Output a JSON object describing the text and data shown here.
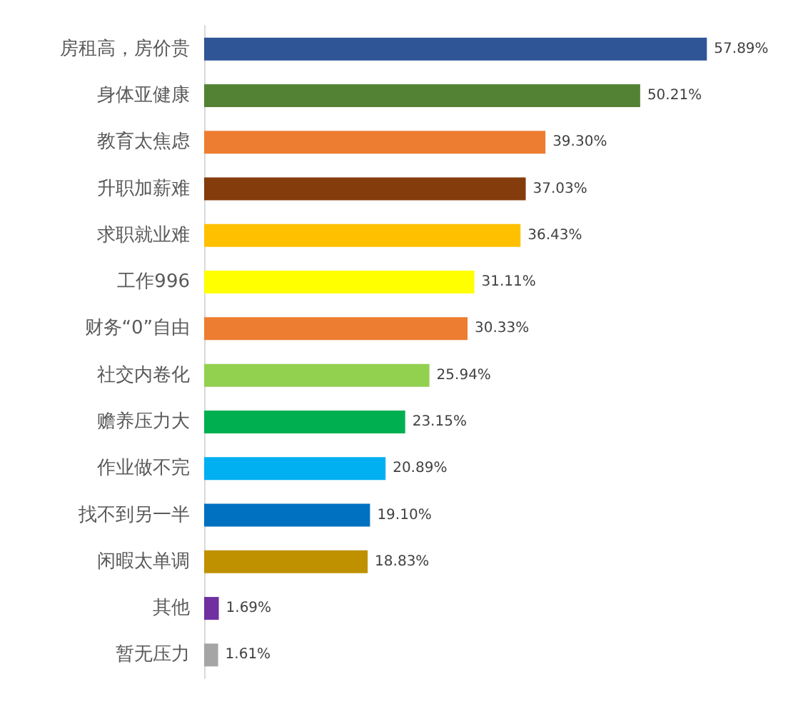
{
  "chart_data": {
    "type": "bar",
    "orientation": "horizontal",
    "categories": [
      "房租高，房价贵",
      "身体亚健康",
      "教育太焦虑",
      "升职加薪难",
      "求职就业难",
      "工作996",
      "财务“0”自由",
      "社交内卷化",
      "赡养压力大",
      "作业做不完",
      "找不到另一半",
      "闲暇太单调",
      "其他",
      "暂无压力"
    ],
    "values": [
      57.89,
      50.21,
      39.3,
      37.03,
      36.43,
      31.11,
      30.33,
      25.94,
      23.15,
      20.89,
      19.1,
      18.83,
      1.69,
      1.61
    ],
    "value_labels": [
      "57.89%",
      "50.21%",
      "39.30%",
      "37.03%",
      "36.43%",
      "31.11%",
      "30.33%",
      "25.94%",
      "23.15%",
      "20.89%",
      "19.10%",
      "18.83%",
      "1.69%",
      "1.61%"
    ],
    "colors": [
      "#2f5597",
      "#548235",
      "#ed7d31",
      "#843c0c",
      "#ffc000",
      "#ffff00",
      "#ed7d31",
      "#92d050",
      "#00b050",
      "#00b0f0",
      "#0070c0",
      "#bf9000",
      "#7030a0",
      "#a5a5a5"
    ]
  }
}
